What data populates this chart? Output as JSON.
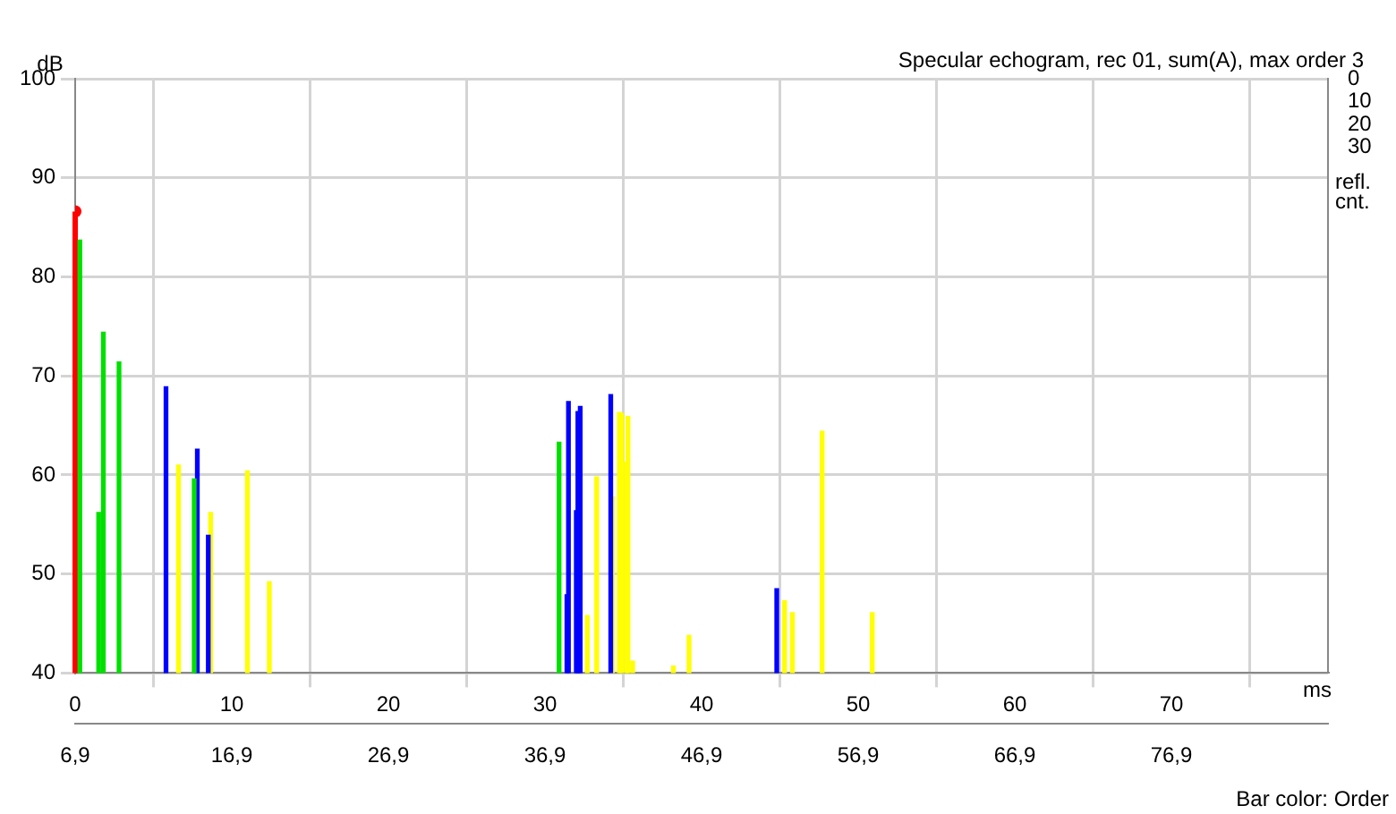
{
  "chart_data": {
    "type": "bar",
    "title": "Specular echogram, rec 01, sum(A), max order 3",
    "xlabel": "ms",
    "ylabel": "dB",
    "y2label": "refl. cnt.",
    "annotations": [
      "Bar color: Order"
    ],
    "series": [
      {
        "type": "lollipop",
        "color": "#ff0000",
        "x": [
          0
        ],
        "values": [
          86.6
        ]
      },
      {
        "color": "#00e000",
        "x": [
          0.3,
          1.5,
          1.8,
          2.8,
          7.6,
          30.9
        ],
        "values": [
          83.7,
          56.2,
          74.4,
          71.4,
          59.6,
          63.3
        ]
      },
      {
        "color": "#0000ff",
        "x": [
          5.8,
          7.8,
          8.5,
          31.4,
          31.5,
          32.0,
          32.1,
          32.25,
          34.2,
          44.8
        ],
        "values": [
          68.9,
          62.6,
          53.9,
          47.9,
          67.4,
          56.4,
          66.4,
          66.9,
          68.1,
          48.5
        ]
      },
      {
        "color": "#ffff00",
        "x": [
          6.6,
          8.65,
          11.0,
          12.4,
          32.7,
          33.3,
          34.3,
          34.75,
          34.9,
          35.2,
          35.3,
          35.6,
          38.2,
          39.2,
          45.3,
          45.8,
          47.7,
          50.9
        ],
        "values": [
          61.0,
          56.2,
          60.4,
          49.2,
          45.8,
          59.8,
          57.8,
          66.3,
          66.2,
          61.3,
          65.9,
          41.2,
          40.7,
          43.8,
          47.3,
          46.1,
          64.4,
          46.1
        ]
      }
    ],
    "xlim": [
      0,
      80
    ],
    "xticks": [
      0,
      10,
      20,
      30,
      40,
      50,
      60,
      70
    ],
    "x2lim": [
      6.9,
      86.9
    ],
    "x2ticks": [
      {
        "value": 6.9,
        "label": "6,9"
      },
      {
        "value": 16.9,
        "label": "16,9"
      },
      {
        "value": 26.9,
        "label": "26,9"
      },
      {
        "value": 36.9,
        "label": "36,9"
      },
      {
        "value": 46.9,
        "label": "46,9"
      },
      {
        "value": 56.9,
        "label": "56,9"
      },
      {
        "value": 66.9,
        "label": "66,9"
      },
      {
        "value": 76.9,
        "label": "76,9"
      }
    ],
    "ylim": [
      40,
      100
    ],
    "yticks": [
      40,
      50,
      60,
      70,
      80,
      90,
      100
    ],
    "y2lim": [
      260,
      0
    ],
    "y2ticks": [
      0,
      10,
      20,
      30
    ],
    "grid": true,
    "legend": false
  }
}
